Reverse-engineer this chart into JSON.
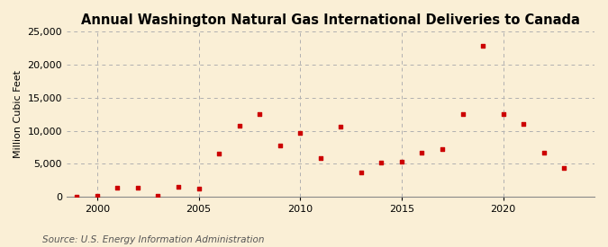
{
  "title": "Annual Washington Natural Gas International Deliveries to Canada",
  "ylabel": "Million Cubic Feet",
  "source": "Source: U.S. Energy Information Administration",
  "background_color": "#faefd6",
  "plot_bg_color": "#faefd6",
  "marker_color": "#cc0000",
  "years": [
    1999,
    2000,
    2001,
    2002,
    2003,
    2004,
    2005,
    2006,
    2007,
    2008,
    2009,
    2010,
    2011,
    2012,
    2013,
    2014,
    2015,
    2016,
    2017,
    2018,
    2019,
    2020,
    2021,
    2022,
    2023
  ],
  "values": [
    20,
    80,
    1400,
    1350,
    200,
    1500,
    1200,
    6500,
    10700,
    12500,
    7800,
    9700,
    5900,
    10600,
    3700,
    5200,
    5300,
    6700,
    7200,
    12500,
    22800,
    12500,
    11000,
    6600,
    4300
  ],
  "ylim": [
    0,
    25000
  ],
  "yticks": [
    0,
    5000,
    10000,
    15000,
    20000,
    25000
  ],
  "xlim": [
    1998.5,
    2024.5
  ],
  "xticks": [
    2000,
    2005,
    2010,
    2015,
    2020
  ],
  "grid_color": "#b0b0b0",
  "title_fontsize": 10.5,
  "label_fontsize": 8,
  "tick_fontsize": 8,
  "source_fontsize": 7.5
}
